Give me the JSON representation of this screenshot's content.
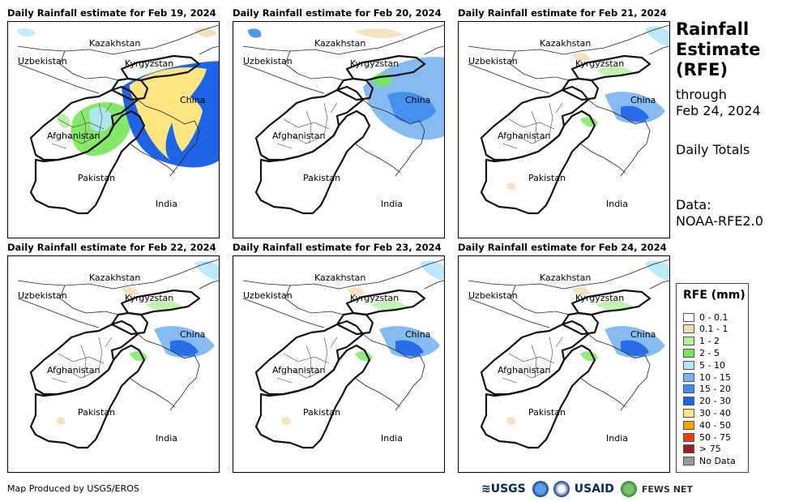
{
  "panels": [
    {
      "title": "Daily Rainfall estimate for Feb 19, 2024",
      "intensity": "heavy"
    },
    {
      "title": "Daily Rainfall estimate for Feb 20, 2024",
      "intensity": "medium"
    },
    {
      "title": "Daily Rainfall estimate for Feb 21, 2024",
      "intensity": "light"
    },
    {
      "title": "Daily Rainfall estimate for Feb 22, 2024",
      "intensity": "light"
    },
    {
      "title": "Daily Rainfall estimate for Feb 23, 2024",
      "intensity": "light"
    },
    {
      "title": "Daily Rainfall estimate for Feb 24, 2024",
      "intensity": "light"
    }
  ],
  "labels": {
    "kazakhstan": "Kazakhstan",
    "uzbekistan": "Uzbekistan",
    "kyrgyzstan": "Kyrgyzstan",
    "china": "China",
    "afghanistan": "Afghanistan",
    "pakistan": "Pakistan",
    "india": "India"
  },
  "side": {
    "title_line1": "Rainfall",
    "title_line2": "Estimate",
    "title_line3": "(RFE)",
    "through": "through",
    "date": "Feb 24, 2024",
    "daily": "Daily Totals",
    "data_label": "Data:",
    "data_source": "NOAA-RFE2.0"
  },
  "legend": {
    "title": "RFE (mm)",
    "items": [
      {
        "label": "0 - 0.1",
        "color": "#ffffff"
      },
      {
        "label": "0.1 - 1",
        "color": "#f0dcb4"
      },
      {
        "label": "1 - 2",
        "color": "#b4f0a0"
      },
      {
        "label": "2 - 5",
        "color": "#78e65a"
      },
      {
        "label": "5 - 10",
        "color": "#b4e6fa"
      },
      {
        "label": "10 - 15",
        "color": "#78b4f0"
      },
      {
        "label": "15 - 20",
        "color": "#3c8cf0"
      },
      {
        "label": "20 - 30",
        "color": "#1e64e6"
      },
      {
        "label": "30 - 40",
        "color": "#ffe682"
      },
      {
        "label": "40 - 50",
        "color": "#ffa000"
      },
      {
        "label": "50 - 75",
        "color": "#f03c14"
      },
      {
        "label": "> 75",
        "color": "#a01e1e"
      },
      {
        "label": "No Data",
        "color": "#9a9a9a"
      }
    ]
  },
  "footer": {
    "credit": "Map Produced by USGS/EROS",
    "logo_usgs": "≋USGS",
    "logo_usaid": "USAID",
    "logo_fews": "FEWS NET"
  }
}
